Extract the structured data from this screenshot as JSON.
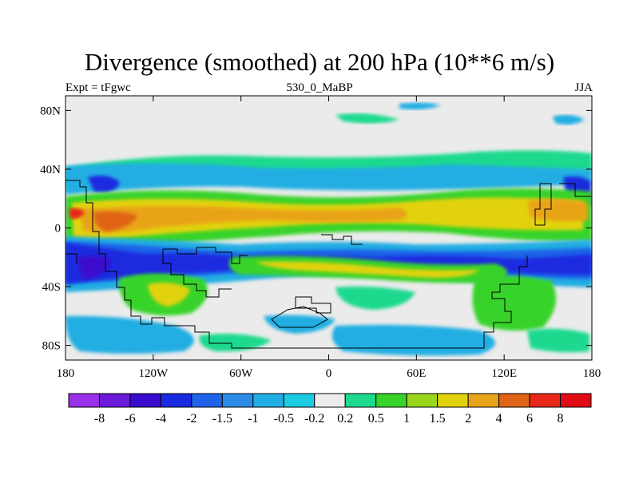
{
  "title": "Divergence (smoothed) at 200 hPa (10**6 m/s)",
  "subtitle_left": "Expt = tFgwc",
  "subtitle_center": "530_0_MaBP",
  "subtitle_right": "JJA",
  "chart_data": {
    "type": "heatmap",
    "map": "global lat-lon contour map",
    "lon_ticks": [
      "180",
      "120W",
      "60W",
      "0",
      "60E",
      "120E",
      "180"
    ],
    "lon_values": [
      -180,
      -120,
      -60,
      0,
      60,
      120,
      180
    ],
    "lat_ticks": [
      "80N",
      "40N",
      "0",
      "40S",
      "80S"
    ],
    "lat_values": [
      80,
      40,
      0,
      -40,
      -80
    ],
    "xlim": [
      -180,
      180
    ],
    "ylim": [
      -90,
      90
    ],
    "colorbar_labels": [
      "-8",
      "-6",
      "-4",
      "-2",
      "-1.5",
      "-1",
      "-0.5",
      "-0.2",
      "0.2",
      "0.5",
      "1",
      "1.5",
      "2",
      "4",
      "6",
      "8"
    ],
    "colorbar_colors": [
      "#9a30e8",
      "#6a1ad8",
      "#3a0ccc",
      "#1a2ae0",
      "#1f63e8",
      "#2a8ce6",
      "#21aee2",
      "#1ccce2",
      "#ececec",
      "#1fd98e",
      "#37d32a",
      "#9ad61c",
      "#e2d20c",
      "#e8a418",
      "#e06418",
      "#e8281a",
      "#e00a14"
    ]
  }
}
